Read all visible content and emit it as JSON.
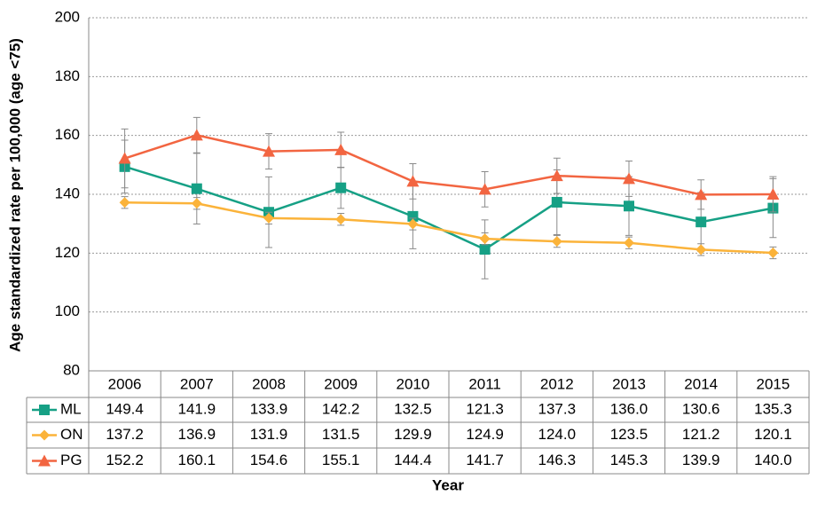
{
  "chart_data": {
    "type": "line",
    "y_label": "Age standardized rate per 100,000 (age <75)",
    "x_label": "Year",
    "categories": [
      "2006",
      "2007",
      "2008",
      "2009",
      "2010",
      "2011",
      "2012",
      "2013",
      "2014",
      "2015"
    ],
    "series": [
      {
        "name": "ML",
        "color": "#16a085",
        "marker": "square",
        "values": [
          149.4,
          141.9,
          133.9,
          142.2,
          132.5,
          121.3,
          137.3,
          136.0,
          130.6,
          135.3
        ],
        "value_labels": [
          "149.4",
          "141.9",
          "133.9",
          "142.2",
          "132.5",
          "121.3",
          "137.3",
          "136.0",
          "130.6",
          "135.3"
        ],
        "errors": [
          9,
          12,
          12,
          7,
          11,
          10,
          11,
          10,
          10,
          10
        ]
      },
      {
        "name": "ON",
        "color": "#fbb33a",
        "marker": "diamond",
        "values": [
          137.2,
          136.9,
          131.9,
          131.5,
          129.9,
          124.9,
          124.0,
          123.5,
          121.2,
          120.1
        ],
        "value_labels": [
          "137.2",
          "136.9",
          "131.9",
          "131.5",
          "129.9",
          "124.9",
          "124.0",
          "123.5",
          "121.2",
          "120.1"
        ],
        "errors": [
          2,
          2,
          2,
          2,
          2,
          2,
          2,
          2,
          2,
          2
        ]
      },
      {
        "name": "PG",
        "color": "#f26541",
        "marker": "triangle",
        "values": [
          152.2,
          160.1,
          154.6,
          155.1,
          144.4,
          141.7,
          146.3,
          145.3,
          139.9,
          140.0
        ],
        "value_labels": [
          "152.2",
          "160.1",
          "154.6",
          "155.1",
          "144.4",
          "141.7",
          "146.3",
          "145.3",
          "139.9",
          "140.0"
        ],
        "errors": [
          10,
          6,
          6,
          6,
          6,
          6,
          6,
          6,
          5,
          6
        ]
      }
    ],
    "ylim": [
      80,
      200
    ],
    "yticks": [
      80,
      100,
      120,
      140,
      160,
      180,
      200
    ],
    "grid": true,
    "error_bars": true
  }
}
